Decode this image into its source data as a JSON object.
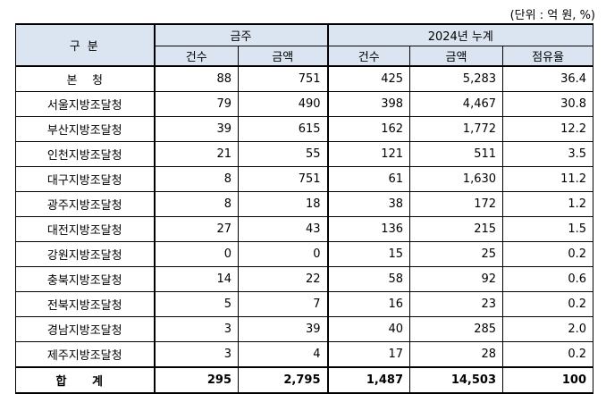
{
  "unit_note": "(단위 : 억 원, %)",
  "header": {
    "region_label": "구 분",
    "group1": "금주",
    "group2": "2024년 누계",
    "cols": [
      "건수",
      "금액",
      "건수",
      "금액",
      "점유율"
    ]
  },
  "rows": [
    {
      "region": "본    청",
      "w_count": "88",
      "w_amount": "751",
      "y_count": "425",
      "y_amount": "5,283",
      "share": "36.4"
    },
    {
      "region": "서울지방조달청",
      "w_count": "79",
      "w_amount": "490",
      "y_count": "398",
      "y_amount": "4,467",
      "share": "30.8"
    },
    {
      "region": "부산지방조달청",
      "w_count": "39",
      "w_amount": "615",
      "y_count": "162",
      "y_amount": "1,772",
      "share": "12.2"
    },
    {
      "region": "인천지방조달청",
      "w_count": "21",
      "w_amount": "55",
      "y_count": "121",
      "y_amount": "511",
      "share": "3.5"
    },
    {
      "region": "대구지방조달청",
      "w_count": "8",
      "w_amount": "751",
      "y_count": "61",
      "y_amount": "1,630",
      "share": "11.2"
    },
    {
      "region": "광주지방조달청",
      "w_count": "8",
      "w_amount": "18",
      "y_count": "38",
      "y_amount": "172",
      "share": "1.2"
    },
    {
      "region": "대전지방조달청",
      "w_count": "27",
      "w_amount": "43",
      "y_count": "136",
      "y_amount": "215",
      "share": "1.5"
    },
    {
      "region": "강원지방조달청",
      "w_count": "0",
      "w_amount": "0",
      "y_count": "15",
      "y_amount": "25",
      "share": "0.2"
    },
    {
      "region": "충북지방조달청",
      "w_count": "14",
      "w_amount": "22",
      "y_count": "58",
      "y_amount": "92",
      "share": "0.6"
    },
    {
      "region": "전북지방조달청",
      "w_count": "5",
      "w_amount": "7",
      "y_count": "16",
      "y_amount": "23",
      "share": "0.2"
    },
    {
      "region": "경남지방조달청",
      "w_count": "3",
      "w_amount": "39",
      "y_count": "40",
      "y_amount": "285",
      "share": "2.0"
    },
    {
      "region": "제주지방조달청",
      "w_count": "3",
      "w_amount": "4",
      "y_count": "17",
      "y_amount": "28",
      "share": "0.2"
    }
  ],
  "total": {
    "region": "합 계",
    "w_count": "295",
    "w_amount": "2,795",
    "y_count": "1,487",
    "y_amount": "14,503",
    "share": "100"
  }
}
